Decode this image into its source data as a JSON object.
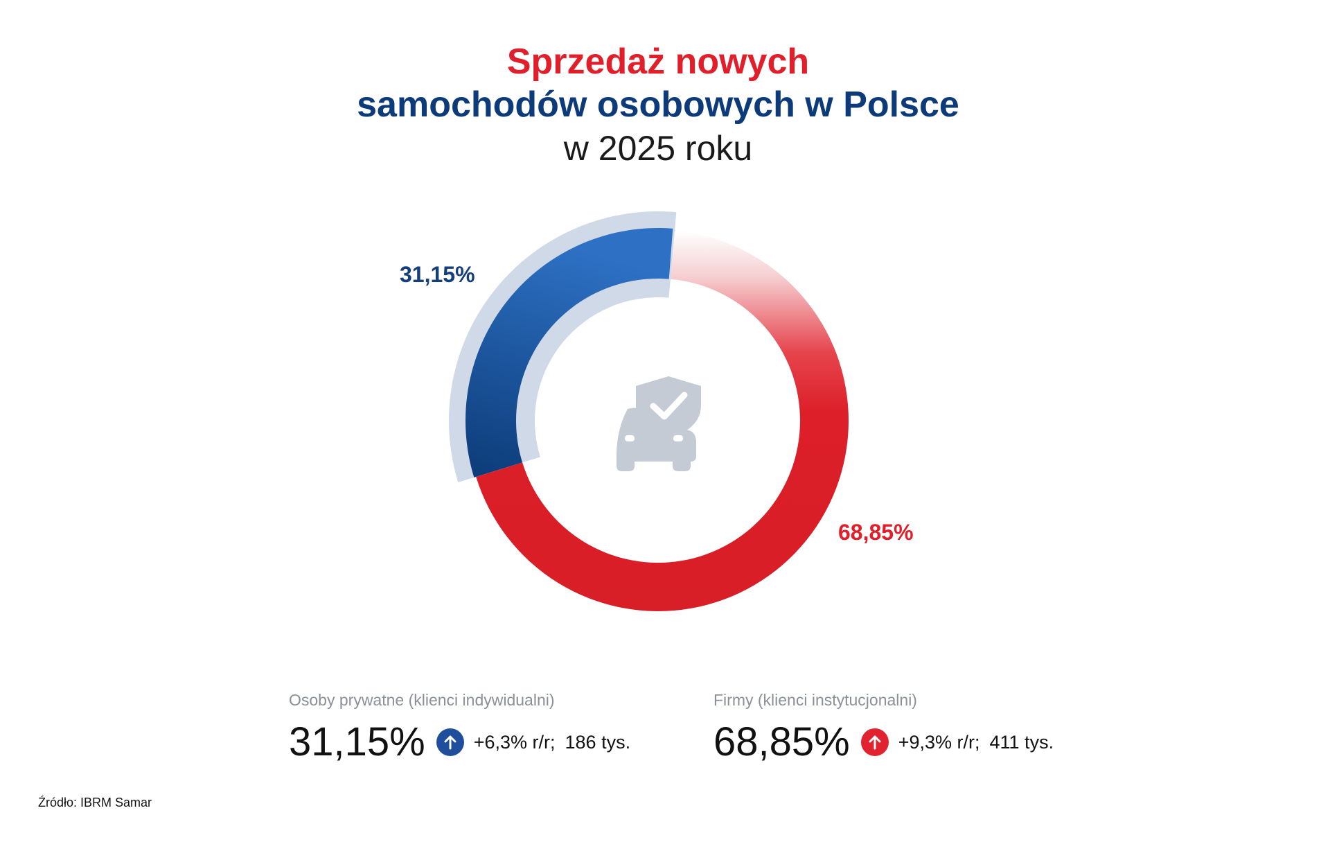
{
  "title": {
    "line1": "Sprzedaż nowych",
    "line2": "samochodów osobowych w Polsce",
    "line3": "w 2025 roku"
  },
  "chart_data": {
    "type": "pie",
    "variant": "donut",
    "slices": [
      {
        "label": "Osoby prywatne (klienci indywidualni)",
        "value": 31.15,
        "display": "31,15%",
        "color": "#1f4f9c"
      },
      {
        "label": "Firmy (klienci instytucjonalni)",
        "value": 68.85,
        "display": "68,85%",
        "color": "#e0232e"
      }
    ],
    "center_icon": "car-shield-check-icon"
  },
  "legend": {
    "private": {
      "caption": "Osoby prywatne (klienci indywidualni)",
      "pct": "31,15%",
      "change": "+6,3% r/r;",
      "units": "186 tys.",
      "trend_icon": "arrow-up-icon",
      "color": "#1f4f9c"
    },
    "company": {
      "caption": "Firmy (klienci instytucjonalni)",
      "pct": "68,85%",
      "change": "+9,3% r/r;",
      "units": "411 tys.",
      "trend_icon": "arrow-up-icon",
      "color": "#e0232e"
    }
  },
  "source": "Źródło: IBRM Samar"
}
